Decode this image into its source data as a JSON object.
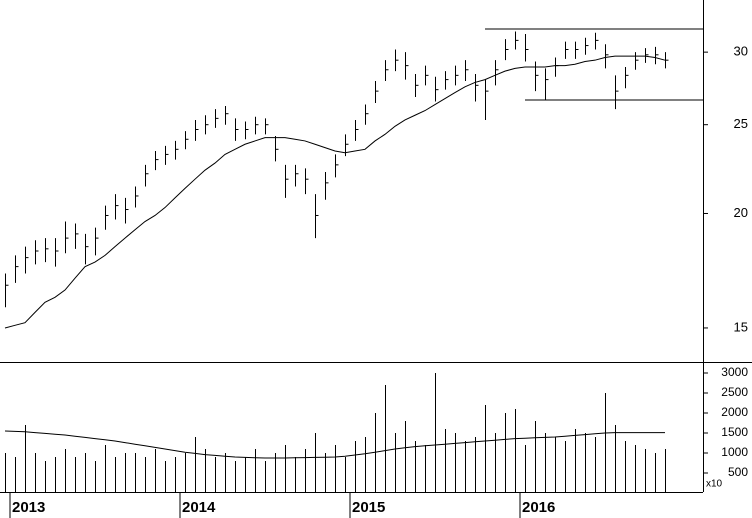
{
  "chart_data": {
    "type": "ohlc",
    "categories": [
      null,
      "2013",
      null,
      null,
      null,
      null,
      null,
      null,
      null,
      null,
      null,
      null,
      null,
      null,
      null,
      null,
      null,
      null,
      "2014",
      null,
      null,
      null,
      null,
      null,
      null,
      null,
      null,
      null,
      null,
      null,
      null,
      null,
      null,
      null,
      null,
      "2015",
      null,
      null,
      null,
      null,
      null,
      null,
      null,
      null,
      null,
      null,
      null,
      null,
      null,
      null,
      null,
      null,
      "2016",
      null,
      null,
      null,
      null,
      null,
      null,
      null,
      null,
      null,
      null,
      null,
      null,
      null,
      null
    ],
    "high": [
      17.2,
      18.0,
      18.4,
      18.7,
      18.8,
      18.8,
      19.6,
      19.5,
      19.0,
      19.3,
      20.4,
      21.0,
      20.8,
      21.4,
      22.6,
      23.4,
      23.7,
      24.0,
      24.6,
      25.3,
      25.6,
      26.0,
      26.2,
      25.4,
      25.2,
      25.5,
      25.4,
      24.3,
      22.6,
      22.6,
      22.4,
      21.0,
      22.2,
      23.2,
      24.4,
      25.3,
      26.3,
      27.9,
      29.4,
      30.2,
      30.0,
      28.4,
      29.0,
      28.2,
      28.6,
      29.0,
      29.4,
      28.4,
      28.0,
      29.4,
      31.0,
      31.6,
      31.4,
      29.3,
      28.8,
      29.6,
      30.8,
      30.8,
      31.1,
      31.5,
      30.6,
      28.3,
      28.9,
      30.0,
      30.3,
      30.4,
      30.0
    ],
    "low": [
      15.8,
      16.8,
      17.2,
      17.6,
      17.7,
      17.5,
      18.1,
      18.3,
      17.6,
      18.0,
      19.2,
      19.7,
      19.5,
      20.3,
      21.4,
      22.3,
      22.6,
      22.9,
      23.5,
      24.0,
      24.4,
      24.8,
      25.0,
      24.0,
      24.1,
      24.4,
      24.4,
      22.8,
      20.8,
      21.4,
      21.0,
      18.8,
      20.7,
      21.9,
      23.1,
      24.0,
      25.0,
      26.4,
      27.9,
      28.6,
      28.0,
      26.8,
      27.6,
      26.5,
      27.3,
      27.6,
      27.9,
      26.5,
      25.3,
      27.6,
      29.4,
      30.2,
      29.3,
      27.2,
      26.6,
      28.2,
      29.5,
      29.5,
      29.8,
      30.2,
      28.8,
      26.0,
      27.4,
      28.7,
      29.2,
      29.1,
      28.8
    ],
    "close": [
      16.7,
      17.5,
      17.9,
      18.2,
      18.3,
      18.2,
      18.8,
      19.0,
      18.4,
      18.8,
      19.9,
      20.4,
      20.2,
      20.9,
      22.1,
      22.9,
      23.2,
      23.5,
      24.1,
      24.7,
      25.0,
      25.4,
      25.7,
      24.7,
      24.7,
      25.0,
      25.0,
      23.5,
      21.8,
      22.1,
      21.8,
      19.9,
      21.6,
      22.6,
      23.8,
      24.7,
      25.7,
      27.2,
      28.7,
      29.4,
      29.0,
      27.6,
      28.3,
      27.3,
      28.0,
      28.3,
      28.7,
      27.6,
      27.2,
      28.7,
      30.2,
      30.9,
      30.2,
      28.3,
      28.0,
      29.0,
      30.2,
      30.2,
      30.5,
      30.9,
      29.8,
      27.2,
      28.3,
      29.4,
      29.8,
      29.8,
      29.4
    ],
    "ma": [
      15.0,
      15.1,
      15.2,
      15.6,
      16.0,
      16.2,
      16.5,
      17.0,
      17.5,
      17.7,
      18.0,
      18.4,
      18.8,
      19.2,
      19.6,
      19.9,
      20.3,
      20.8,
      21.3,
      21.8,
      22.3,
      22.7,
      23.2,
      23.5,
      23.8,
      24.0,
      24.2,
      24.2,
      24.2,
      24.1,
      24.0,
      23.8,
      23.6,
      23.4,
      23.3,
      23.4,
      23.5,
      24.0,
      24.4,
      24.9,
      25.3,
      25.6,
      25.9,
      26.3,
      26.7,
      27.1,
      27.5,
      27.8,
      28.0,
      28.3,
      28.6,
      28.8,
      28.9,
      28.9,
      28.9,
      29.0,
      29.0,
      29.1,
      29.3,
      29.4,
      29.6,
      29.7,
      29.7,
      29.7,
      29.7,
      29.6,
      29.4
    ],
    "volume": [
      1000,
      900,
      1700,
      1000,
      800,
      900,
      1100,
      900,
      1000,
      800,
      1200,
      900,
      1000,
      1000,
      900,
      1100,
      800,
      900,
      1000,
      1400,
      1100,
      900,
      1000,
      800,
      900,
      1100,
      800,
      1000,
      1200,
      900,
      1100,
      1500,
      1000,
      1200,
      900,
      1300,
      1400,
      2000,
      2700,
      1500,
      1800,
      1300,
      1200,
      3000,
      1600,
      1500,
      1300,
      1400,
      2200,
      1500,
      2000,
      2100,
      1200,
      1800,
      1500,
      1400,
      1300,
      1600,
      1500,
      1400,
      2500,
      1700,
      1300,
      1200,
      1100,
      1000,
      1100
    ],
    "volume_ma": [
      1550,
      1540,
      1530,
      1510,
      1490,
      1470,
      1450,
      1420,
      1390,
      1360,
      1330,
      1300,
      1260,
      1220,
      1180,
      1140,
      1100,
      1060,
      1020,
      990,
      960,
      940,
      920,
      900,
      890,
      880,
      875,
      875,
      875,
      880,
      885,
      890,
      895,
      900,
      920,
      950,
      980,
      1020,
      1060,
      1100,
      1130,
      1160,
      1180,
      1200,
      1220,
      1240,
      1260,
      1280,
      1300,
      1320,
      1340,
      1360,
      1370,
      1380,
      1390,
      1400,
      1420,
      1440,
      1460,
      1480,
      1500,
      1510,
      1510,
      1510,
      1510,
      1510,
      1510
    ],
    "hlines": [
      {
        "value": 31.8,
        "from": 48
      },
      {
        "value": 26.6,
        "from": 52
      }
    ],
    "ylim": [
      13.77,
      34.2
    ],
    "yticks": [
      15,
      20,
      25,
      30
    ],
    "log_scale": true,
    "vlim": [
      0,
      3275
    ],
    "vticks": [
      500,
      1000,
      1500,
      2000,
      2500,
      3000
    ],
    "volume_unit": "x10",
    "color": "#000000"
  }
}
